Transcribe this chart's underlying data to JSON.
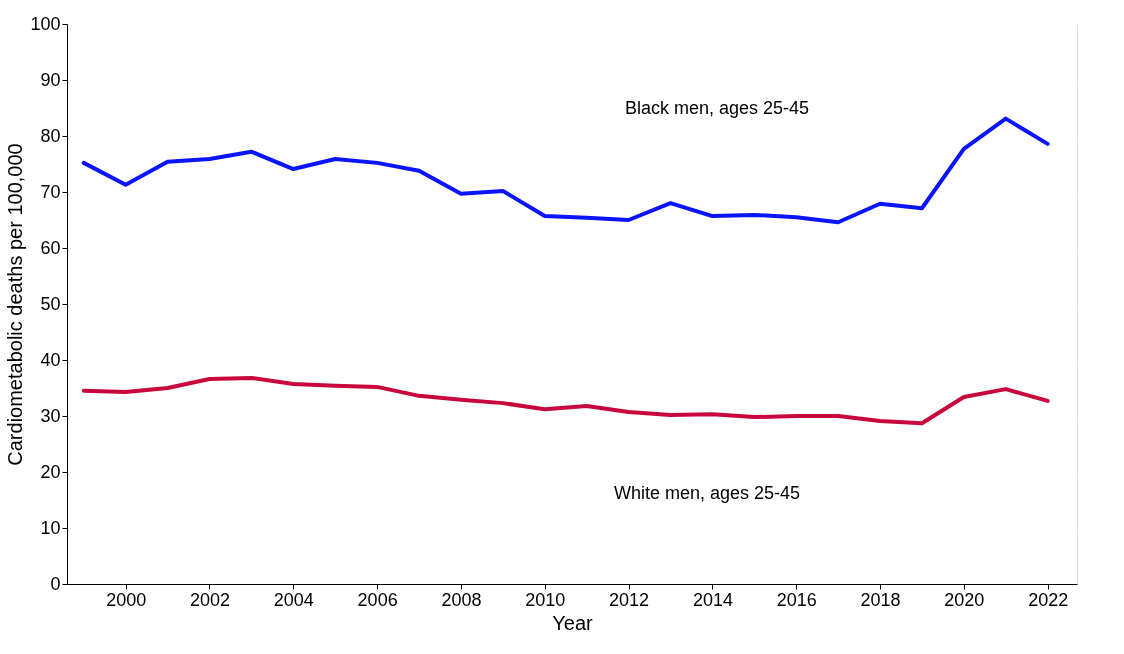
{
  "chart_data": {
    "type": "line",
    "xlabel": "Year",
    "ylabel": "Cardiometabolic deaths per 100,000",
    "x": [
      1999,
      2000,
      2001,
      2002,
      2003,
      2004,
      2005,
      2006,
      2007,
      2008,
      2009,
      2010,
      2011,
      2012,
      2013,
      2014,
      2015,
      2016,
      2017,
      2018,
      2019,
      2020,
      2021,
      2022
    ],
    "series": [
      {
        "color": "#0a14ff",
        "values": [
          75.2,
          71.3,
          75.4,
          75.9,
          77.2,
          74.1,
          75.9,
          75.2,
          73.8,
          69.7,
          70.2,
          65.7,
          65.4,
          65.0,
          68.0,
          65.7,
          65.9,
          65.5,
          64.6,
          67.9,
          67.1,
          77.7,
          83.1,
          78.6
        ]
      },
      {
        "color": "#c8083c",
        "values": [
          34.5,
          34.3,
          35.0,
          36.6,
          36.8,
          35.7,
          35.4,
          35.2,
          33.6,
          32.9,
          32.3,
          31.2,
          31.8,
          30.7,
          30.2,
          30.3,
          29.8,
          30.0,
          30.0,
          29.1,
          28.7,
          33.4,
          34.8,
          32.7
        ]
      }
    ],
    "annotations": [
      "Black men, ages 25-45",
      "White men, ages 25-45"
    ],
    "xlim": [
      1998.6,
      2022.7
    ],
    "xticks": [
      2000,
      2002,
      2004,
      2006,
      2008,
      2010,
      2012,
      2014,
      2016,
      2018,
      2020,
      2022
    ],
    "ylim": [
      0,
      100
    ],
    "yticks": [
      0,
      10,
      20,
      30,
      40,
      50,
      60,
      70,
      80,
      90,
      100
    ],
    "grid": "y",
    "marker": "none",
    "line_style": "solid"
  }
}
